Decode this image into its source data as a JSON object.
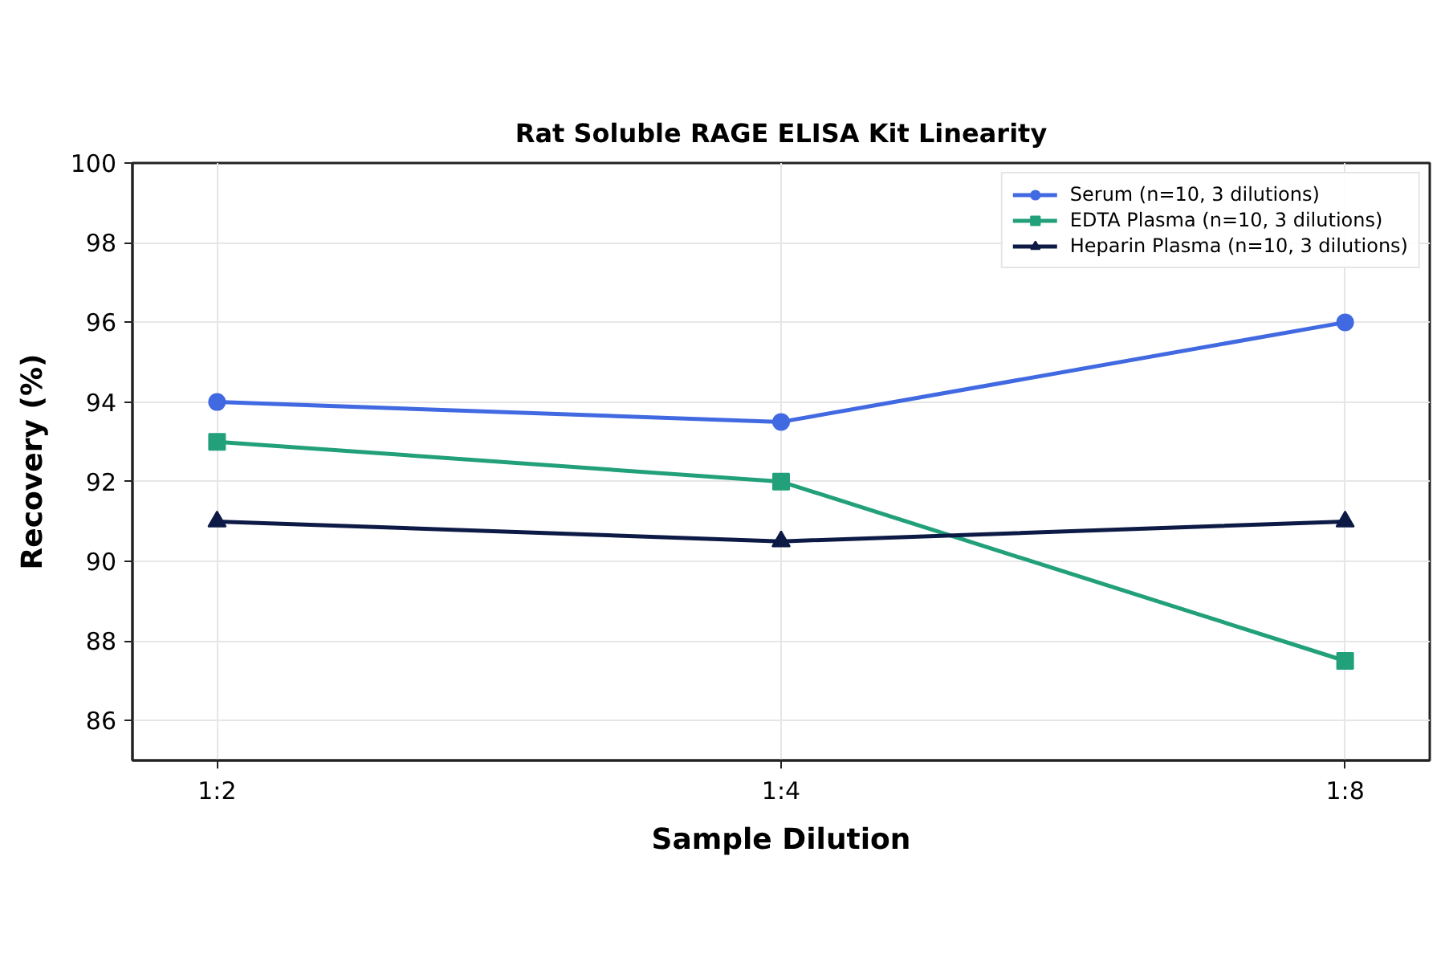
{
  "chart_data": {
    "type": "line",
    "title": "Rat Soluble RAGE ELISA Kit Linearity",
    "xlabel": "Sample Dilution",
    "ylabel": "Recovery (%)",
    "categories": [
      "1:2",
      "1:4",
      "1:8"
    ],
    "series": [
      {
        "name": "Serum (n=10, 3 dilutions)",
        "color": "#4169e1",
        "marker": "circle",
        "values": [
          94,
          93.5,
          96
        ]
      },
      {
        "name": "EDTA Plasma (n=10, 3 dilutions)",
        "color": "#22a079",
        "marker": "square",
        "values": [
          93,
          92,
          87.5
        ]
      },
      {
        "name": "Heparin Plasma (n=10, 3 dilutions)",
        "color": "#0c1a45",
        "marker": "triangle",
        "values": [
          91,
          90.5,
          91
        ]
      }
    ],
    "ylim": [
      85,
      100
    ],
    "yticks": [
      86,
      88,
      90,
      92,
      94,
      96,
      98,
      100
    ],
    "grid": true,
    "legend": "top right",
    "line_style": "solid"
  }
}
